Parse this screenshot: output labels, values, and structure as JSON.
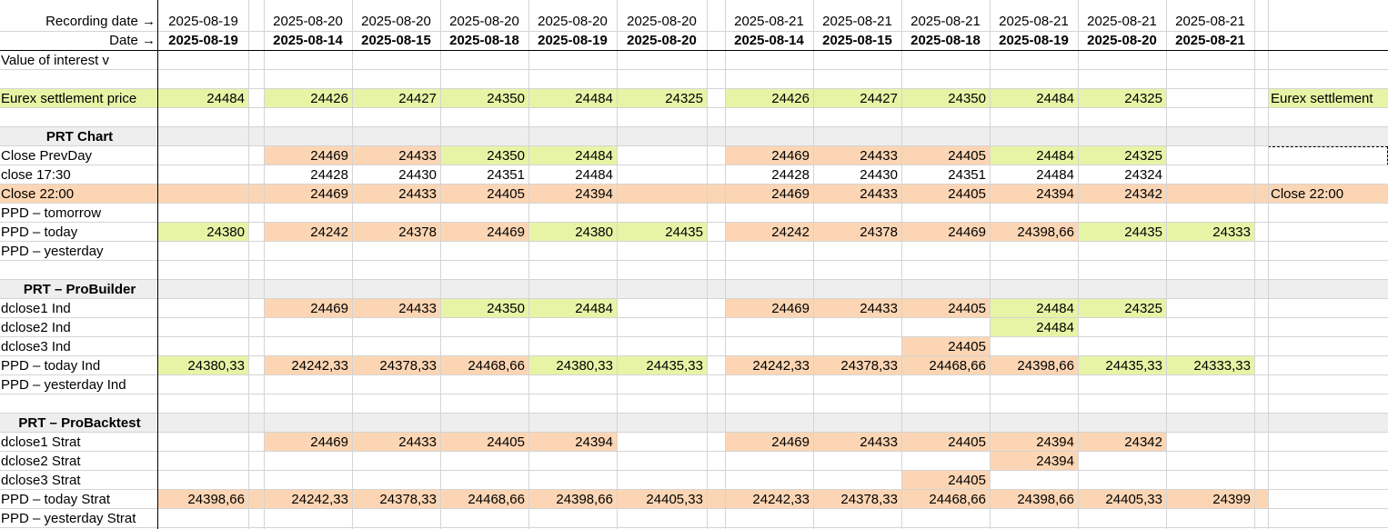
{
  "colors": {
    "green": "#e7f4a6",
    "orange": "#fcd6b4",
    "section": "#eeeeee",
    "grid": "#d4d4d4"
  },
  "header": {
    "recording_label": "Recording date →",
    "date_label": "Date →",
    "recording": [
      "2025-08-19",
      "2025-08-20",
      "2025-08-20",
      "2025-08-20",
      "2025-08-20",
      "2025-08-20",
      "2025-08-21",
      "2025-08-21",
      "2025-08-21",
      "2025-08-21",
      "2025-08-21",
      "2025-08-21"
    ],
    "dates": [
      "2025-08-19",
      "2025-08-14",
      "2025-08-15",
      "2025-08-18",
      "2025-08-19",
      "2025-08-20",
      "2025-08-14",
      "2025-08-15",
      "2025-08-18",
      "2025-08-19",
      "2025-08-20",
      "2025-08-21"
    ]
  },
  "rows": [
    {
      "label": "Value of interest v"
    },
    {
      "label": ""
    },
    {
      "label": "Eurex settlement price",
      "labelColor": "green",
      "rightLabel": "Eurex settlement",
      "rightColor": "green",
      "values": [
        "24484",
        "",
        "24426",
        "24427",
        "24350",
        "24484",
        "24325",
        "24426",
        "24427",
        "24350",
        "24484",
        "24325",
        ""
      ],
      "colors": [
        "green",
        "",
        "green",
        "green",
        "green",
        "green",
        "green",
        "green",
        "green",
        "green",
        "green",
        "green",
        ""
      ]
    },
    {
      "label": ""
    },
    {
      "label": "PRT Chart",
      "section": true
    },
    {
      "label": "Close PrevDay",
      "rightDashed": true,
      "values": [
        "",
        "",
        "24469",
        "24433",
        "24350",
        "24484",
        "",
        "24469",
        "24433",
        "24405",
        "24484",
        "24325",
        ""
      ],
      "colors": [
        "",
        "",
        "orange",
        "orange",
        "green",
        "green",
        "",
        "orange",
        "orange",
        "orange",
        "green",
        "green",
        ""
      ]
    },
    {
      "label": "close 17:30",
      "values": [
        "",
        "",
        "24428",
        "24430",
        "24351",
        "24484",
        "",
        "24428",
        "24430",
        "24351",
        "24484",
        "24324",
        ""
      ],
      "colors": [
        "",
        "",
        "",
        "",
        "",
        "",
        "",
        "",
        "",
        "",
        "",
        "",
        ""
      ]
    },
    {
      "label": "Close  22:00",
      "labelColor": "orange",
      "rightLabel": "Close 22:00",
      "rightColor": "orange",
      "values": [
        "",
        "",
        "24469",
        "24433",
        "24405",
        "24394",
        "",
        "24469",
        "24433",
        "24405",
        "24394",
        "24342",
        ""
      ],
      "colors": [
        "orange",
        "orange",
        "orange",
        "orange",
        "orange",
        "orange",
        "orange",
        "orange",
        "orange",
        "orange",
        "orange",
        "orange",
        "orange"
      ]
    },
    {
      "label": "PPD – tomorrow"
    },
    {
      "label": "PPD – today",
      "values": [
        "24380",
        "",
        "24242",
        "24378",
        "24469",
        "24380",
        "24435",
        "24242",
        "24378",
        "24469",
        "24398,66",
        "24435",
        "24333"
      ],
      "colors": [
        "green",
        "",
        "orange",
        "orange",
        "orange",
        "green",
        "green",
        "orange",
        "orange",
        "orange",
        "orange",
        "green",
        "green"
      ]
    },
    {
      "label": "PPD – yesterday"
    },
    {
      "label": ""
    },
    {
      "label": "PRT – ProBuilder",
      "section": true
    },
    {
      "label": "dclose1 Ind",
      "values": [
        "",
        "",
        "24469",
        "24433",
        "24350",
        "24484",
        "",
        "24469",
        "24433",
        "24405",
        "24484",
        "24325",
        ""
      ],
      "colors": [
        "",
        "",
        "orange",
        "orange",
        "green",
        "green",
        "",
        "orange",
        "orange",
        "orange",
        "green",
        "green",
        ""
      ]
    },
    {
      "label": "dclose2 Ind",
      "values": [
        "",
        "",
        "",
        "",
        "",
        "",
        "",
        "",
        "",
        "",
        "24484",
        "",
        ""
      ],
      "colors": [
        "",
        "",
        "",
        "",
        "",
        "",
        "",
        "",
        "",
        "",
        "green",
        "",
        ""
      ]
    },
    {
      "label": "dclose3 Ind",
      "values": [
        "",
        "",
        "",
        "",
        "",
        "",
        "",
        "",
        "",
        "24405",
        "",
        "",
        ""
      ],
      "colors": [
        "",
        "",
        "",
        "",
        "",
        "",
        "",
        "",
        "",
        "orange",
        "",
        "",
        ""
      ]
    },
    {
      "label": "PPD – today Ind",
      "values": [
        "24380,33",
        "",
        "24242,33",
        "24378,33",
        "24468,66",
        "24380,33",
        "24435,33",
        "24242,33",
        "24378,33",
        "24468,66",
        "24398,66",
        "24435,33",
        "24333,33"
      ],
      "colors": [
        "green",
        "",
        "orange",
        "orange",
        "orange",
        "green",
        "green",
        "orange",
        "orange",
        "orange",
        "orange",
        "green",
        "green"
      ]
    },
    {
      "label": "PPD – yesterday Ind"
    },
    {
      "label": ""
    },
    {
      "label": "PRT – ProBacktest",
      "section": true
    },
    {
      "label": "dclose1 Strat",
      "values": [
        "",
        "",
        "24469",
        "24433",
        "24405",
        "24394",
        "",
        "24469",
        "24433",
        "24405",
        "24394",
        "24342",
        ""
      ],
      "colors": [
        "",
        "",
        "orange",
        "orange",
        "orange",
        "orange",
        "",
        "orange",
        "orange",
        "orange",
        "orange",
        "orange",
        ""
      ]
    },
    {
      "label": "dclose2 Strat",
      "values": [
        "",
        "",
        "",
        "",
        "",
        "",
        "",
        "",
        "",
        "",
        "24394",
        "",
        ""
      ],
      "colors": [
        "",
        "",
        "",
        "",
        "",
        "",
        "",
        "",
        "",
        "",
        "orange",
        "",
        ""
      ]
    },
    {
      "label": "dclose3 Strat",
      "values": [
        "",
        "",
        "",
        "",
        "",
        "",
        "",
        "",
        "",
        "24405",
        "",
        "",
        ""
      ],
      "colors": [
        "",
        "",
        "",
        "",
        "",
        "",
        "",
        "",
        "",
        "orange",
        "",
        "",
        ""
      ]
    },
    {
      "label": "PPD – today Strat",
      "values": [
        "24398,66",
        "",
        "24242,33",
        "24378,33",
        "24468,66",
        "24398,66",
        "24405,33",
        "24242,33",
        "24378,33",
        "24468,66",
        "24398,66",
        "24405,33",
        "24399"
      ],
      "colors": [
        "orange",
        "orange",
        "orange",
        "orange",
        "orange",
        "orange",
        "orange",
        "orange",
        "orange",
        "orange",
        "orange",
        "orange",
        "orange"
      ]
    },
    {
      "label": "PPD – yesterday Strat"
    }
  ]
}
